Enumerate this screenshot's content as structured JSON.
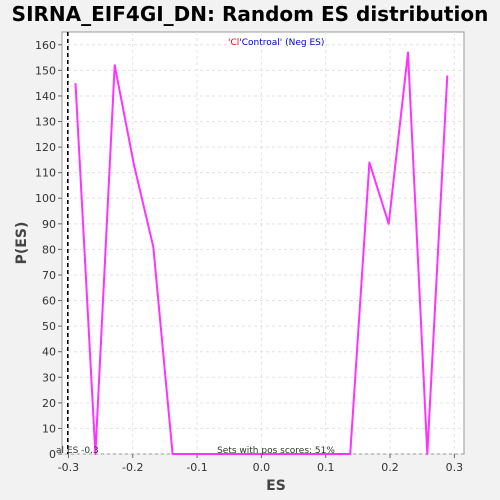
{
  "chart_data": {
    "type": "line",
    "title": "SIRNA_EIF4GI_DN: Random ES distribution",
    "xlabel": "ES",
    "ylabel": "P(ES)",
    "xlim": [
      -0.31,
      0.315
    ],
    "ylim": [
      0,
      165
    ],
    "x_ticks": [
      -0.3,
      -0.2,
      -0.1,
      0.0,
      0.1,
      0.2,
      0.3
    ],
    "x_tick_labels": [
      "-0.3",
      "-0.2",
      "-0.1",
      "0.0",
      "0.1",
      "0.2",
      "0.3"
    ],
    "y_ticks": [
      0,
      10,
      20,
      30,
      40,
      50,
      60,
      70,
      80,
      90,
      100,
      110,
      120,
      130,
      140,
      150,
      160
    ],
    "y_tick_labels": [
      "0",
      "10",
      "20",
      "30",
      "40",
      "50",
      "60",
      "70",
      "80",
      "90",
      "100",
      "110",
      "120",
      "130",
      "140",
      "150",
      "160"
    ],
    "grid": true,
    "series": [
      {
        "color": "#ff33ff",
        "x": [
          -0.289,
          -0.258,
          -0.228,
          -0.198,
          -0.168,
          -0.138,
          0.138,
          0.168,
          0.198,
          0.228,
          0.258,
          0.289
        ],
        "y": [
          145,
          0,
          152,
          113,
          81,
          0,
          0,
          114,
          90,
          157,
          0,
          148
        ]
      }
    ],
    "vline": {
      "x": -0.301,
      "style": "dashed",
      "color": "#000000"
    },
    "annotations": {
      "actual_es": "al ES -0.3",
      "pos_scores": "Sets with pos scores: 51%"
    },
    "legend": {
      "position": "top-center",
      "part1": "'Cl",
      "part1_color": "#ff0000",
      "part2": "'Controal' (Neg ES)",
      "part2_color": "#0000cc"
    }
  }
}
